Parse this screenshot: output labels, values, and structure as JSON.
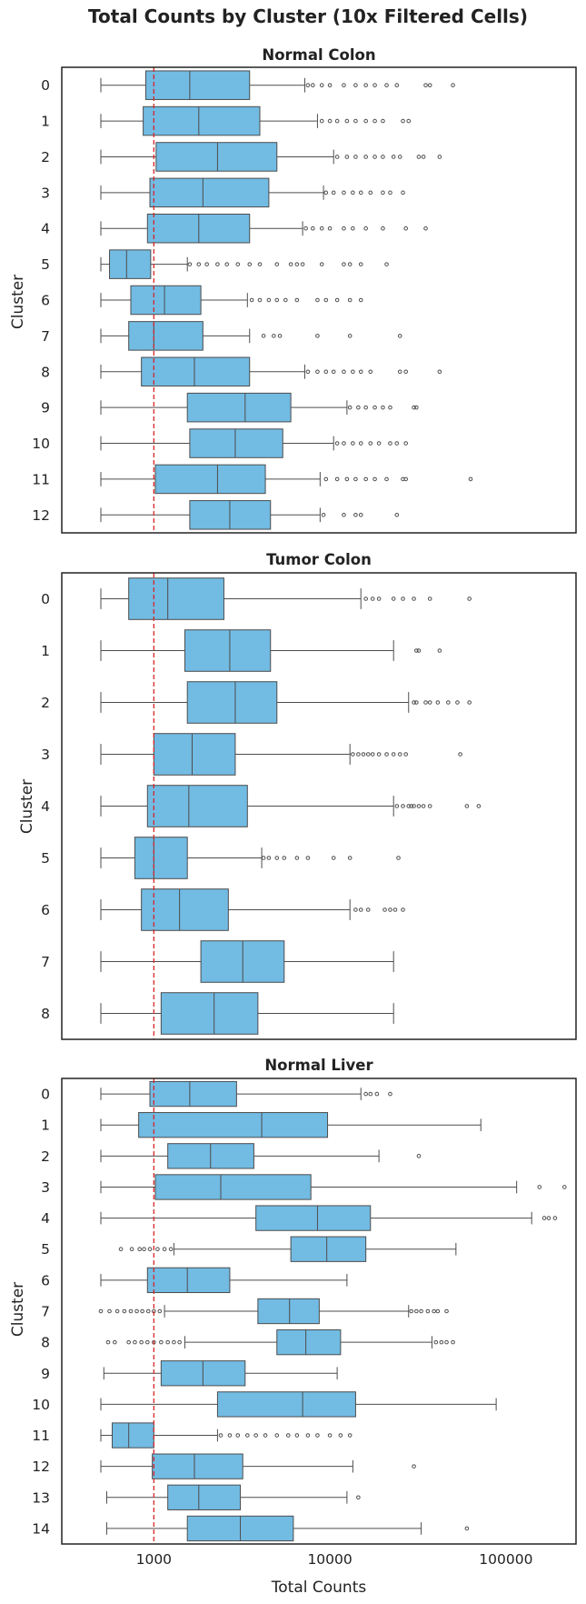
{
  "suptitle": "Total Counts by Cluster (10x Filtered Cells)",
  "style": {
    "box_fill": "#72bbe3",
    "edge": "#4d4d4d",
    "threshold_line": "#d62728"
  },
  "chart_data": [
    {
      "type": "box",
      "title": "Normal Colon",
      "ylabel": "Cluster",
      "xlabel": "",
      "xscale": "log",
      "xlim": [
        300,
        250000
      ],
      "threshold_x": 1000,
      "clusters": [
        {
          "label": "0",
          "whislo": 500,
          "q1": 900,
          "med": 1600,
          "q3": 3500,
          "whishi": 7200,
          "outliers": [
            7500,
            8000,
            9000,
            10000,
            12000,
            14000,
            16000,
            18000,
            21000,
            24000,
            35000,
            37000,
            50000
          ]
        },
        {
          "label": "1",
          "whislo": 500,
          "q1": 870,
          "med": 1800,
          "q3": 4000,
          "whishi": 8500,
          "outliers": [
            9000,
            10000,
            11000,
            12500,
            14000,
            16000,
            18000,
            20000,
            26000,
            28000
          ]
        },
        {
          "label": "2",
          "whislo": 500,
          "q1": 1030,
          "med": 2300,
          "q3": 5000,
          "whishi": 10500,
          "outliers": [
            11000,
            12500,
            14000,
            16000,
            18000,
            20000,
            23000,
            25000,
            32000,
            34000,
            42000
          ]
        },
        {
          "label": "3",
          "whislo": 500,
          "q1": 950,
          "med": 1900,
          "q3": 4500,
          "whishi": 9200,
          "outliers": [
            9500,
            10500,
            12000,
            13500,
            15000,
            17000,
            20000,
            22000,
            26000
          ]
        },
        {
          "label": "4",
          "whislo": 500,
          "q1": 920,
          "med": 1800,
          "q3": 3500,
          "whishi": 7000,
          "outliers": [
            7300,
            8000,
            9000,
            10000,
            12000,
            13500,
            16000,
            20000,
            27000,
            35000
          ]
        },
        {
          "label": "5",
          "whislo": 500,
          "q1": 560,
          "med": 700,
          "q3": 960,
          "whishi": 1550,
          "outliers": [
            1600,
            1800,
            2000,
            2300,
            2600,
            3000,
            3500,
            4000,
            5000,
            6000,
            6500,
            7000,
            9000,
            12000,
            13000,
            15000,
            21000
          ]
        },
        {
          "label": "6",
          "whislo": 500,
          "q1": 740,
          "med": 1150,
          "q3": 1850,
          "whishi": 3400,
          "outliers": [
            3600,
            4000,
            4500,
            5000,
            5600,
            6500,
            8500,
            9500,
            11000,
            13000,
            15000
          ]
        },
        {
          "label": "7",
          "whislo": 500,
          "q1": 720,
          "med": 1000,
          "q3": 1900,
          "whishi": 3500,
          "outliers": [
            4200,
            4800,
            5200,
            8500,
            13000,
            25000
          ]
        },
        {
          "label": "8",
          "whislo": 500,
          "q1": 850,
          "med": 1700,
          "q3": 3500,
          "whishi": 7200,
          "outliers": [
            7500,
            8500,
            9500,
            10500,
            12000,
            13500,
            15000,
            17000,
            25000,
            27000,
            42000
          ]
        },
        {
          "label": "9",
          "whislo": 500,
          "q1": 1550,
          "med": 3300,
          "q3": 6000,
          "whishi": 12500,
          "outliers": [
            13000,
            14500,
            16000,
            18000,
            20000,
            22000,
            30000,
            31000
          ]
        },
        {
          "label": "10",
          "whislo": 500,
          "q1": 1600,
          "med": 2900,
          "q3": 5400,
          "whishi": 10500,
          "outliers": [
            11000,
            12000,
            13500,
            15000,
            17000,
            19000,
            22000,
            24000,
            27000
          ]
        },
        {
          "label": "11",
          "whislo": 500,
          "q1": 1020,
          "med": 2300,
          "q3": 4300,
          "whishi": 8800,
          "outliers": [
            9500,
            11000,
            12500,
            14000,
            16000,
            18000,
            21000,
            26000,
            27000,
            63000
          ]
        },
        {
          "label": "12",
          "whislo": 500,
          "q1": 1600,
          "med": 2700,
          "q3": 4600,
          "whishi": 8800,
          "outliers": [
            9200,
            12000,
            14000,
            15000,
            24000
          ]
        }
      ]
    },
    {
      "type": "box",
      "title": "Tumor Colon",
      "ylabel": "Cluster",
      "xlabel": "",
      "xscale": "log",
      "xlim": [
        300,
        250000
      ],
      "threshold_x": 1000,
      "clusters": [
        {
          "label": "0",
          "whislo": 500,
          "q1": 720,
          "med": 1200,
          "q3": 2500,
          "whishi": 15000,
          "outliers": [
            16000,
            17500,
            19000,
            23000,
            26000,
            30000,
            37000,
            62000
          ]
        },
        {
          "label": "1",
          "whislo": 500,
          "q1": 1500,
          "med": 2700,
          "q3": 4600,
          "whishi": 23000,
          "outliers": [
            31000,
            32000,
            42000
          ]
        },
        {
          "label": "2",
          "whislo": 500,
          "q1": 1550,
          "med": 2900,
          "q3": 5000,
          "whishi": 28000,
          "outliers": [
            30000,
            31000,
            35000,
            37000,
            41000,
            47000,
            53000,
            62000
          ]
        },
        {
          "label": "3",
          "whislo": 500,
          "q1": 1000,
          "med": 1650,
          "q3": 2900,
          "whishi": 13000,
          "outliers": [
            13500,
            14500,
            15500,
            16500,
            17500,
            19000,
            21000,
            23000,
            25000,
            27000,
            55000
          ]
        },
        {
          "label": "4",
          "whislo": 500,
          "q1": 920,
          "med": 1580,
          "q3": 3400,
          "whishi": 23000,
          "outliers": [
            24000,
            26000,
            28000,
            29000,
            30000,
            32000,
            34000,
            37000,
            60000,
            70000
          ]
        },
        {
          "label": "5",
          "whislo": 500,
          "q1": 780,
          "med": 1000,
          "q3": 1550,
          "whishi": 4100,
          "outliers": [
            4200,
            4500,
            5000,
            5500,
            6500,
            7500,
            10500,
            13000,
            24500
          ]
        },
        {
          "label": "6",
          "whislo": 500,
          "q1": 850,
          "med": 1400,
          "q3": 2650,
          "whishi": 13000,
          "outliers": [
            14000,
            15000,
            16500,
            20500,
            22000,
            23500,
            26000
          ]
        },
        {
          "label": "7",
          "whislo": 500,
          "q1": 1850,
          "med": 3200,
          "q3": 5500,
          "whishi": 23000,
          "outliers": []
        },
        {
          "label": "8",
          "whislo": 500,
          "q1": 1100,
          "med": 2200,
          "q3": 3900,
          "whishi": 23000,
          "outliers": []
        }
      ]
    },
    {
      "type": "box",
      "title": "Normal Liver",
      "ylabel": "Cluster",
      "xlabel": "Total Counts",
      "xscale": "log",
      "xlim": [
        300,
        250000
      ],
      "threshold_x": 1000,
      "xticks": [
        "1000",
        "10000",
        "100000"
      ],
      "clusters": [
        {
          "label": "0",
          "whislo": 500,
          "q1": 950,
          "med": 1600,
          "q3": 2950,
          "whishi": 15000,
          "outliers": [
            16000,
            17000,
            18500,
            22000
          ]
        },
        {
          "label": "1",
          "whislo": 500,
          "q1": 820,
          "med": 4100,
          "q3": 9700,
          "whishi": 72000,
          "outliers": []
        },
        {
          "label": "2",
          "whislo": 500,
          "q1": 1200,
          "med": 2100,
          "q3": 3700,
          "whishi": 19000,
          "outliers": [
            32000
          ]
        },
        {
          "label": "3",
          "whislo": 500,
          "q1": 1020,
          "med": 2400,
          "q3": 7800,
          "whishi": 115000,
          "outliers": [
            155000,
            215000
          ]
        },
        {
          "label": "4",
          "whislo": 500,
          "q1": 3800,
          "med": 8500,
          "q3": 17000,
          "whishi": 140000,
          "outliers": [
            165000,
            175000,
            190000
          ]
        },
        {
          "label": "5",
          "whislo": 1300,
          "q1": 6000,
          "med": 9600,
          "q3": 16000,
          "whishi": 52000,
          "outliers": [
            650,
            750,
            830,
            880,
            950,
            1050,
            1150,
            1250
          ]
        },
        {
          "label": "6",
          "whislo": 500,
          "q1": 920,
          "med": 1550,
          "q3": 2700,
          "whishi": 12500,
          "outliers": []
        },
        {
          "label": "7",
          "whislo": 1150,
          "q1": 3900,
          "med": 5900,
          "q3": 8700,
          "whishi": 28000,
          "outliers": [
            500,
            560,
            620,
            680,
            740,
            800,
            860,
            930,
            1000,
            1080,
            29000,
            31000,
            33000,
            36000,
            39000,
            41000,
            46000
          ]
        },
        {
          "label": "8",
          "whislo": 1500,
          "q1": 5000,
          "med": 7300,
          "q3": 11500,
          "whishi": 38000,
          "outliers": [
            550,
            600,
            720,
            780,
            850,
            920,
            1000,
            1100,
            1200,
            1300,
            1400,
            40000,
            43000,
            46000,
            50000
          ]
        },
        {
          "label": "9",
          "whislo": 520,
          "q1": 1100,
          "med": 1900,
          "q3": 3300,
          "whishi": 11000,
          "outliers": []
        },
        {
          "label": "10",
          "whislo": 500,
          "q1": 2300,
          "med": 7000,
          "q3": 14000,
          "whishi": 88000,
          "outliers": []
        },
        {
          "label": "11",
          "whislo": 500,
          "q1": 580,
          "med": 720,
          "q3": 1000,
          "whishi": 2300,
          "outliers": [
            2400,
            2700,
            3000,
            3400,
            3800,
            4300,
            5000,
            5800,
            6500,
            7500,
            8500,
            10000,
            11500,
            13000
          ]
        },
        {
          "label": "12",
          "whislo": 500,
          "q1": 980,
          "med": 1700,
          "q3": 3200,
          "whishi": 13500,
          "outliers": [
            30000
          ]
        },
        {
          "label": "13",
          "whislo": 540,
          "q1": 1200,
          "med": 1800,
          "q3": 3100,
          "whishi": 12500,
          "outliers": [
            14500
          ]
        },
        {
          "label": "14",
          "whislo": 540,
          "q1": 1550,
          "med": 3100,
          "q3": 6200,
          "whishi": 33000,
          "outliers": [
            60000
          ]
        }
      ]
    }
  ]
}
